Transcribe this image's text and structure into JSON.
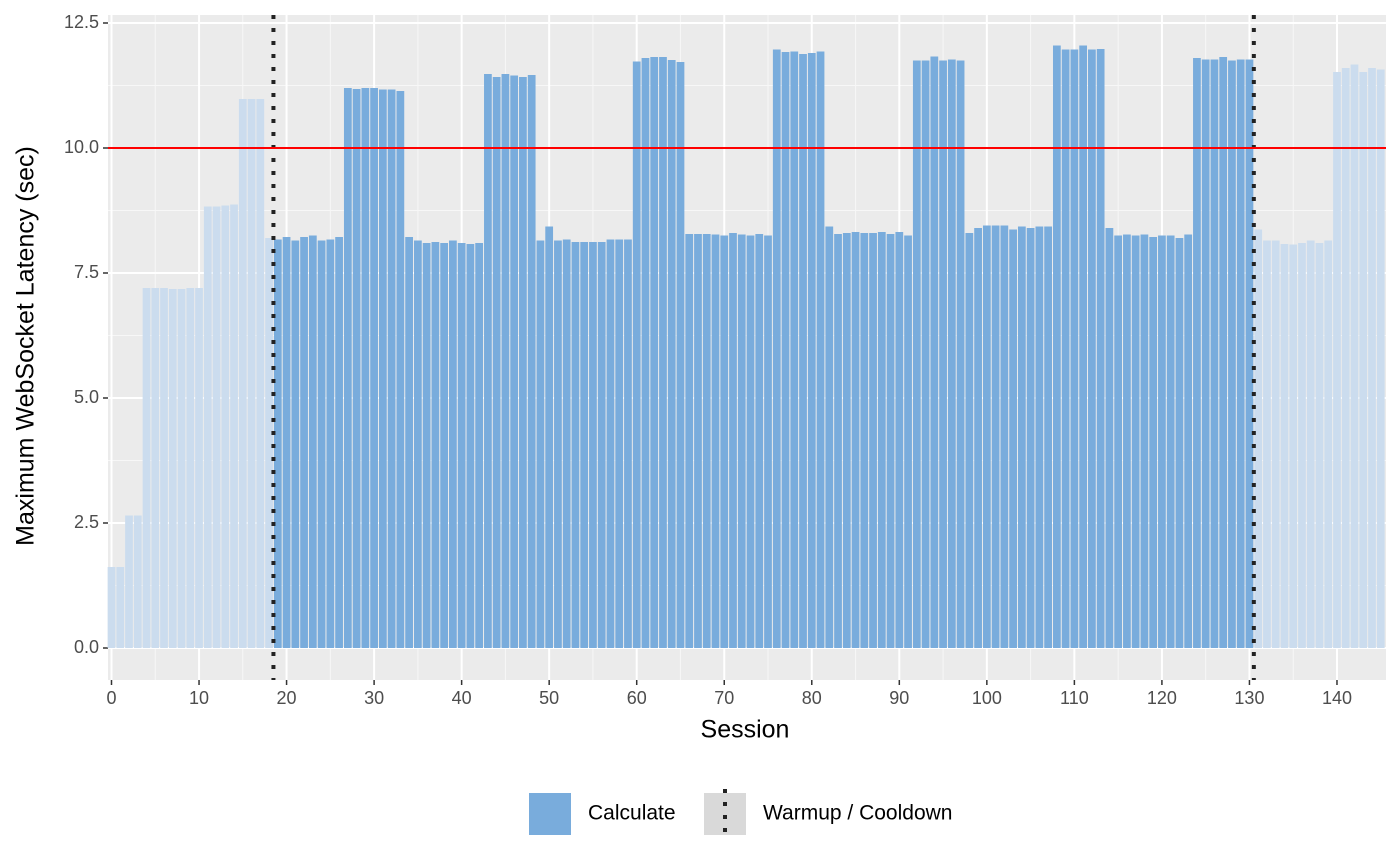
{
  "chart_data": {
    "type": "bar",
    "x_label": "Session",
    "y_label": "Maximum WebSocket Latency (sec)",
    "xlim": [
      -0.4,
      145.6
    ],
    "ylim": [
      -0.64,
      12.66
    ],
    "xticks": [
      0,
      10,
      20,
      30,
      40,
      50,
      60,
      70,
      80,
      90,
      100,
      110,
      120,
      130,
      140
    ],
    "yticks": [
      {
        "value": 0,
        "label": "0.0"
      },
      2.5,
      {
        "value": 5,
        "label": "5.0"
      },
      7.5,
      {
        "value": 10,
        "label": "10.0"
      },
      12.5
    ],
    "grid": true,
    "legend": "bottom",
    "series": [
      {
        "name": "Calculate",
        "color": "#79acdc",
        "x": [
          19,
          20,
          21,
          22,
          23,
          24,
          25,
          26,
          27,
          28,
          29,
          30,
          31,
          32,
          33,
          34,
          35,
          36,
          37,
          38,
          39,
          40,
          41,
          42,
          43,
          44,
          45,
          46,
          47,
          48,
          49,
          50,
          51,
          52,
          53,
          54,
          55,
          56,
          57,
          58,
          59,
          60,
          61,
          62,
          63,
          64,
          65,
          66,
          67,
          68,
          69,
          70,
          71,
          72,
          73,
          74,
          75,
          76,
          77,
          78,
          79,
          80,
          81,
          82,
          83,
          84,
          85,
          86,
          87,
          88,
          89,
          90,
          91,
          92,
          93,
          94,
          95,
          96,
          97,
          98,
          99,
          100,
          101,
          102,
          103,
          104,
          105,
          106,
          107,
          108,
          109,
          110,
          111,
          112,
          113,
          114,
          115,
          116,
          117,
          118,
          119,
          120,
          121,
          122,
          123,
          124,
          125,
          126,
          127,
          128,
          129,
          130
        ],
        "values": [
          8.17,
          8.22,
          8.15,
          8.22,
          8.25,
          8.15,
          8.17,
          8.22,
          11.2,
          11.18,
          11.2,
          11.2,
          11.17,
          11.17,
          11.14,
          8.22,
          8.15,
          8.1,
          8.12,
          8.1,
          8.15,
          8.1,
          8.08,
          8.1,
          11.48,
          11.42,
          11.48,
          11.45,
          11.42,
          11.46,
          8.15,
          8.43,
          8.15,
          8.17,
          8.12,
          8.12,
          8.12,
          8.12,
          8.17,
          8.17,
          8.17,
          11.73,
          11.8,
          11.82,
          11.82,
          11.76,
          11.72,
          8.28,
          8.28,
          8.28,
          8.27,
          8.25,
          8.3,
          8.27,
          8.25,
          8.28,
          8.25,
          11.97,
          11.92,
          11.93,
          11.88,
          11.9,
          11.93,
          8.43,
          8.28,
          8.3,
          8.32,
          8.3,
          8.3,
          8.32,
          8.28,
          8.32,
          8.25,
          11.75,
          11.75,
          11.83,
          11.75,
          11.77,
          11.75,
          8.3,
          8.4,
          8.45,
          8.45,
          8.45,
          8.37,
          8.43,
          8.4,
          8.43,
          8.43,
          12.05,
          11.97,
          11.97,
          12.05,
          11.97,
          11.98,
          8.4,
          8.25,
          8.27,
          8.25,
          8.27,
          8.22,
          8.25,
          8.25,
          8.2,
          8.27,
          11.8,
          11.77,
          11.77,
          11.82,
          11.75,
          11.77,
          11.77
        ]
      }
    ],
    "faded": {
      "color": "#cbdcee",
      "x": [
        0,
        1,
        2,
        3,
        4,
        5,
        6,
        7,
        8,
        9,
        10,
        11,
        12,
        13,
        14,
        15,
        16,
        17,
        18,
        131,
        132,
        133,
        134,
        135,
        136,
        137,
        138,
        139,
        140,
        141,
        142,
        143,
        144,
        145
      ],
      "values": [
        1.62,
        1.62,
        2.65,
        2.65,
        7.2,
        7.2,
        7.2,
        7.18,
        7.18,
        7.2,
        7.2,
        8.83,
        8.83,
        8.85,
        8.87,
        10.98,
        10.98,
        10.98,
        8.2,
        8.37,
        8.15,
        8.15,
        8.08,
        8.07,
        8.1,
        8.15,
        8.1,
        8.15,
        11.52,
        11.6,
        11.67,
        11.52,
        11.6,
        11.57
      ]
    },
    "vlines": {
      "name": "Warmup / Cooldown",
      "color": "#222222",
      "x": [
        18.5,
        130.5
      ]
    },
    "hline": {
      "y": 10,
      "color": "#ff0000"
    }
  }
}
